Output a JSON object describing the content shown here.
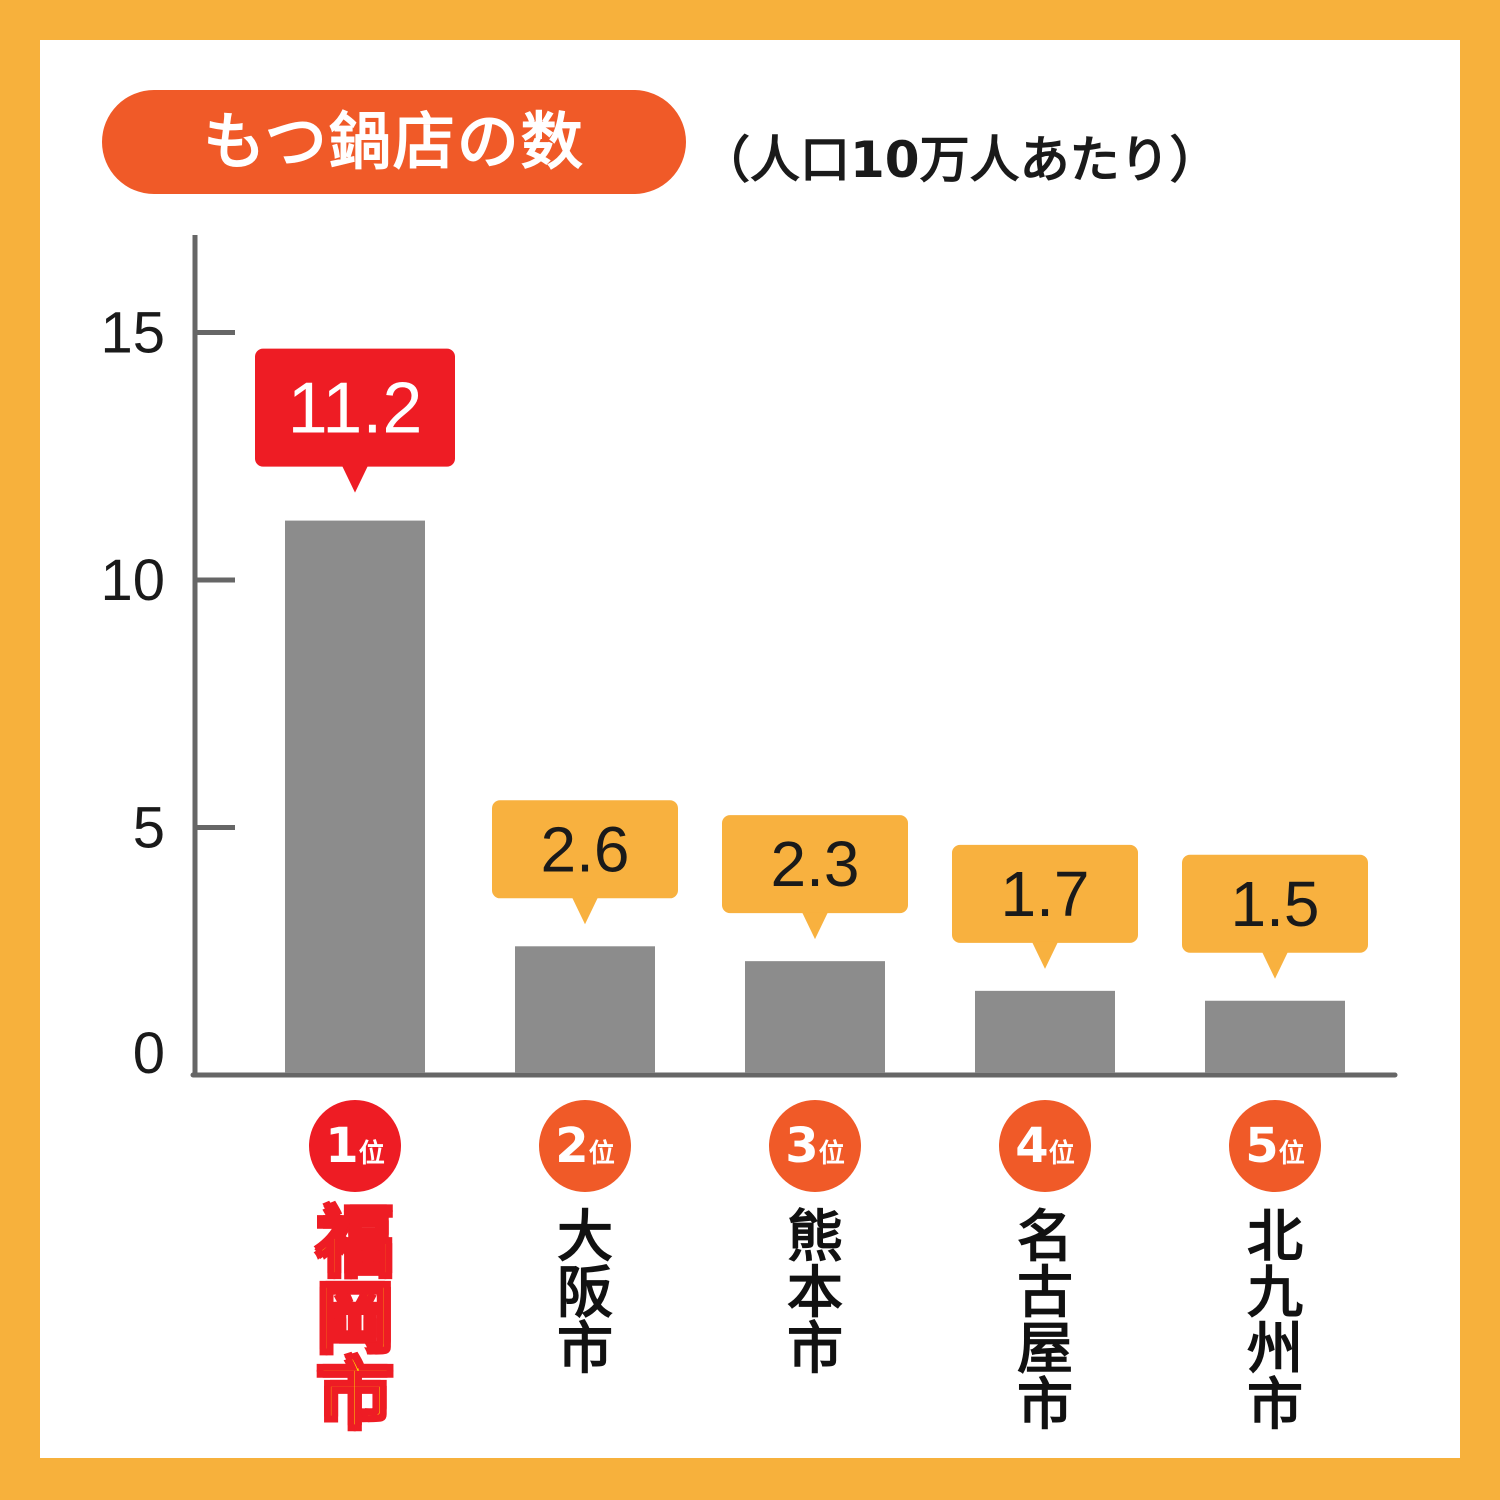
{
  "title": "もつ鍋店の数",
  "subtitle": "（人口10万人あたり）",
  "chart_data": {
    "type": "bar",
    "categories": [
      "福岡市",
      "大阪市",
      "熊本市",
      "名古屋市",
      "北九州市"
    ],
    "values": [
      11.2,
      2.6,
      2.3,
      1.7,
      1.5
    ],
    "value_labels": [
      "11.2",
      "2.6",
      "2.3",
      "1.7",
      "1.5"
    ],
    "ranks": [
      "1",
      "2",
      "3",
      "4",
      "5"
    ],
    "rank_suffix": "位",
    "yticks": [
      0,
      5,
      10,
      15
    ],
    "ylim": [
      0,
      17
    ],
    "grid": false,
    "xlabel": "",
    "ylabel": "",
    "colors": {
      "bar": "#8c8c8c",
      "axis": "#666666",
      "top_callout": "#ee1c24",
      "callout": "#f8b13f",
      "rank_top": "#ee1c24",
      "rank": "#f05a28",
      "title_pill": "#f05a28",
      "frame": "#f7b13c"
    }
  }
}
